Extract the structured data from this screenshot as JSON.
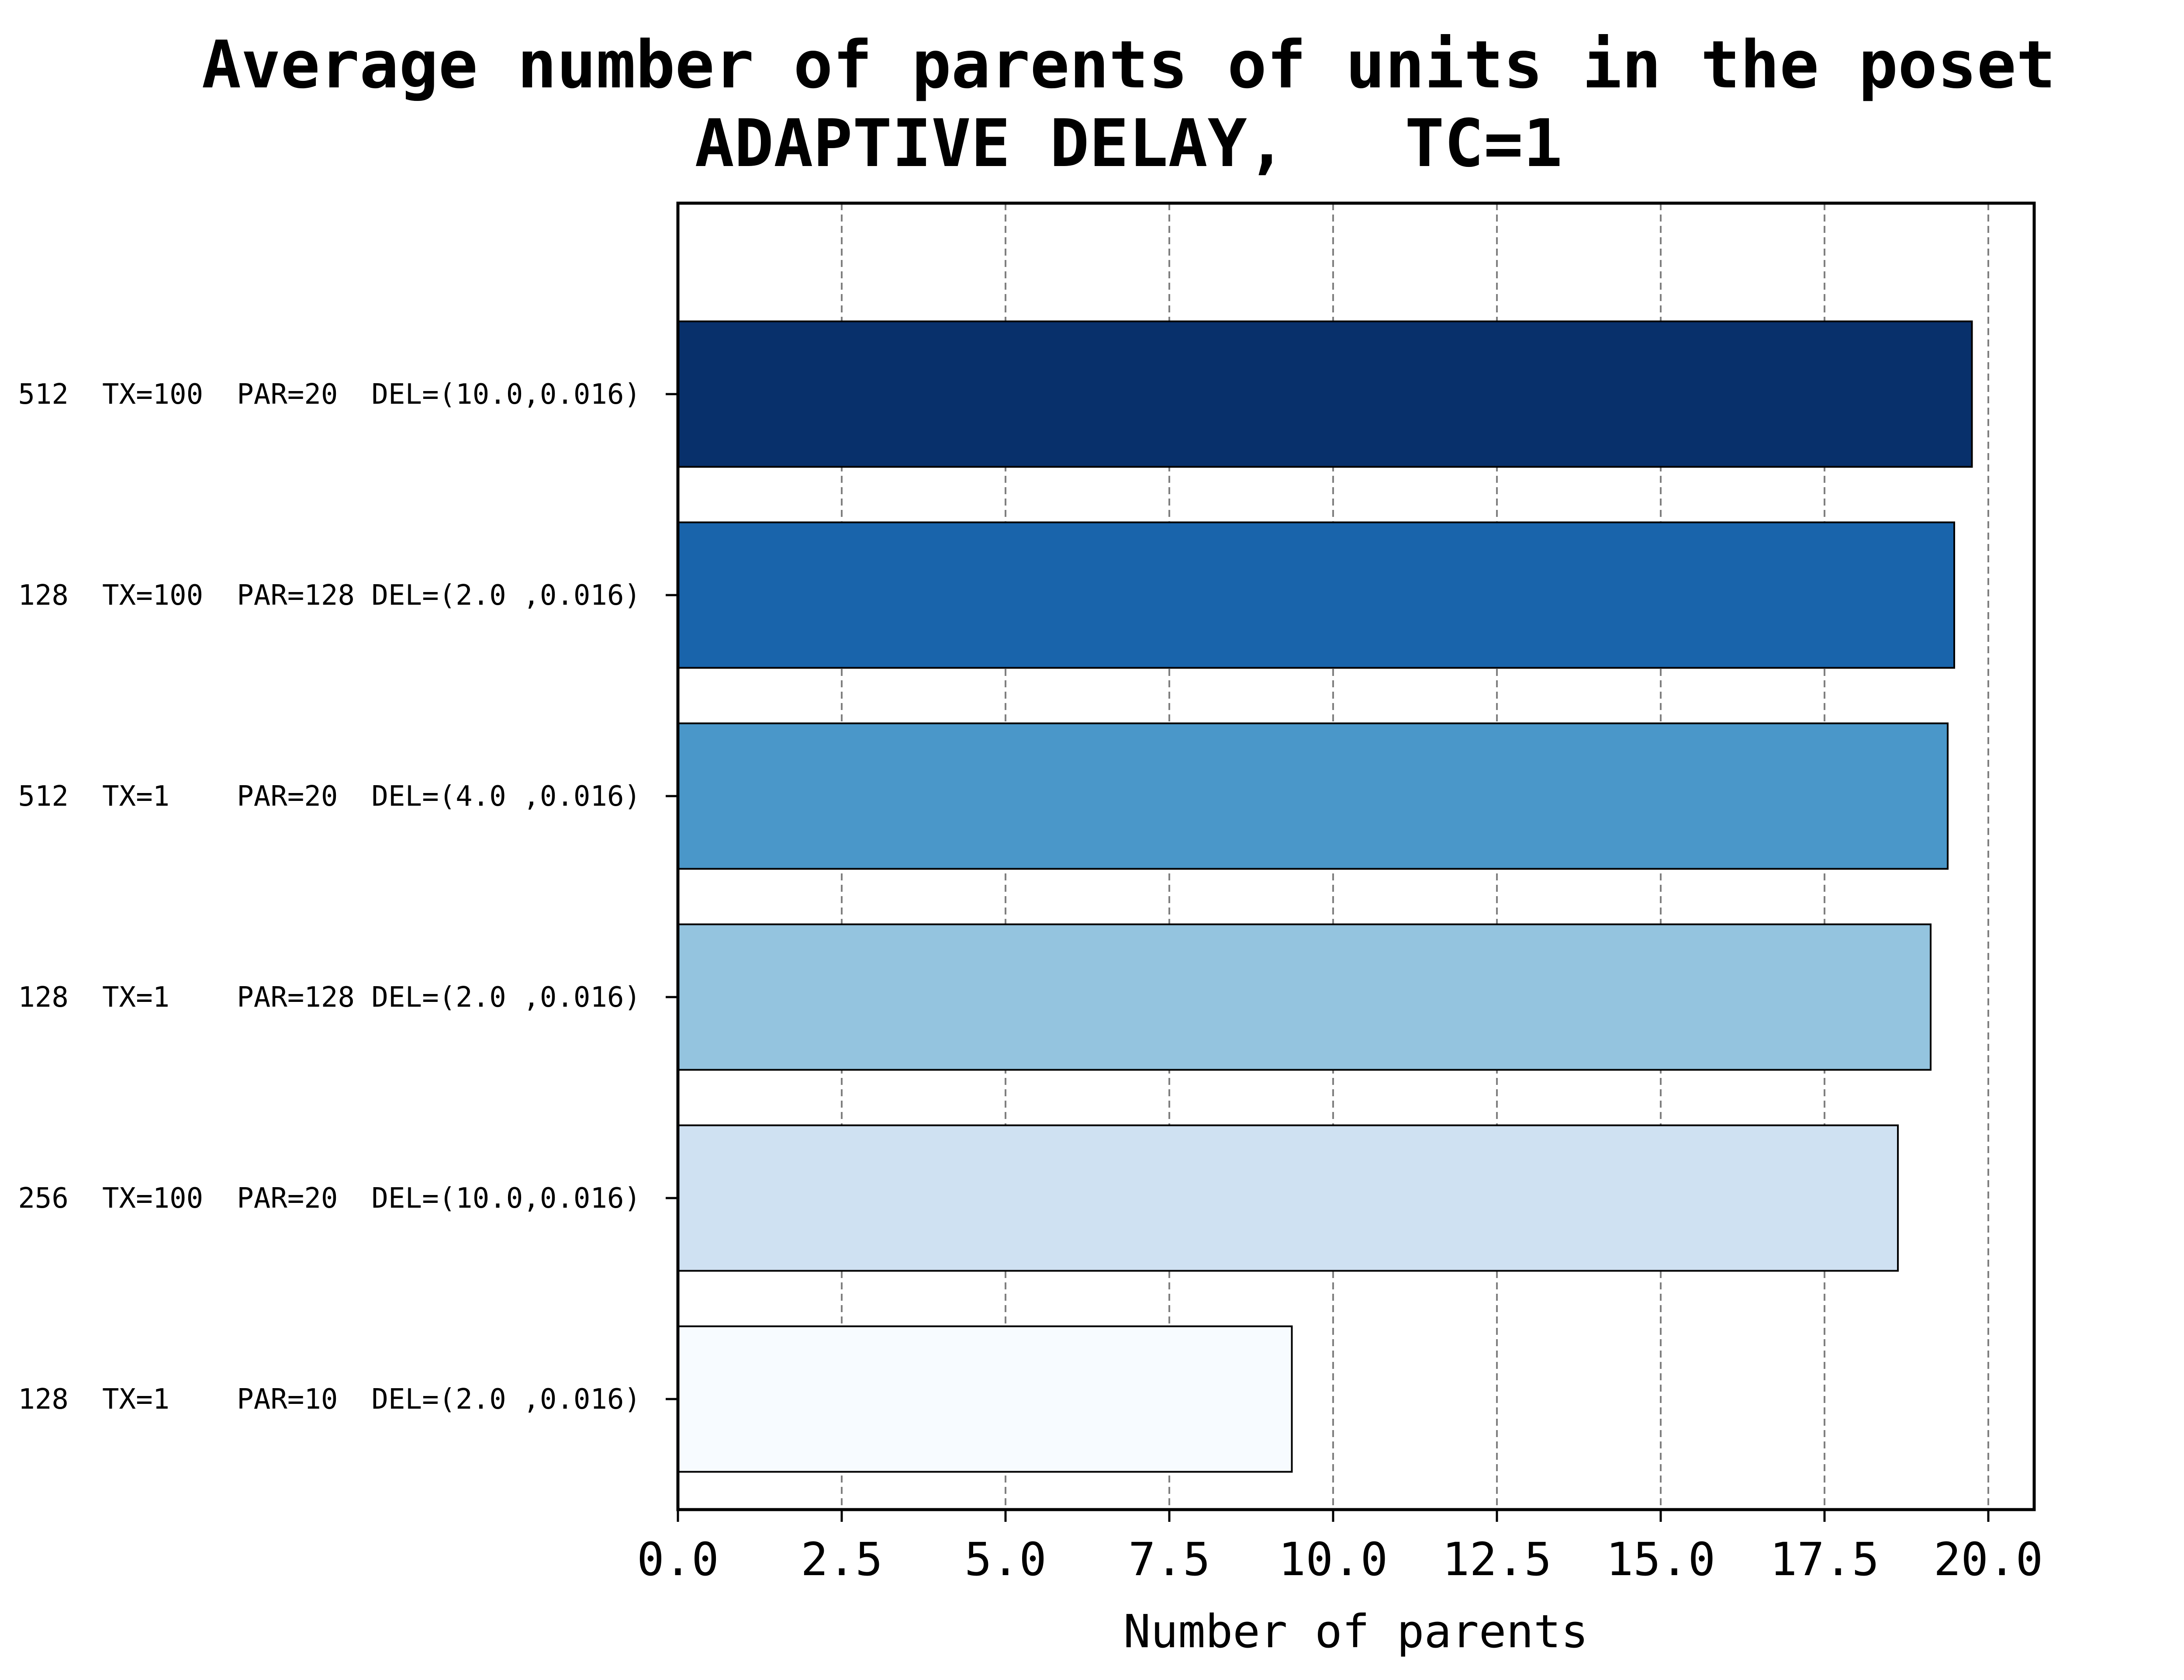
{
  "chart_data": {
    "type": "bar",
    "orientation": "horizontal",
    "title": "Average number of parents of units in the poset",
    "subtitle": "ADAPTIVE DELAY,   TC=1",
    "xlabel": "Number of parents",
    "ylabel": "",
    "xlim": [
      0,
      20.7
    ],
    "xticks": [
      "0.0",
      "2.5",
      "5.0",
      "7.5",
      "10.0",
      "12.5",
      "15.0",
      "17.5",
      "20.0"
    ],
    "grid": "vertical dashed",
    "categories": [
      "512  TX=100  PAR=20  DEL=(10.0,0.016)",
      "128  TX=100  PAR=128 DEL=(2.0 ,0.016)",
      "512  TX=1    PAR=20  DEL=(4.0 ,0.016)",
      "128  TX=1    PAR=128 DEL=(2.0 ,0.016)",
      "256  TX=100  PAR=20  DEL=(10.0,0.016)",
      "128  TX=1    PAR=10  DEL=(2.0 ,0.016)"
    ],
    "values": [
      19.75,
      19.48,
      19.38,
      19.12,
      18.62,
      9.37
    ],
    "colors": [
      "#08306b",
      "#1964ab",
      "#4a97c9",
      "#94c4df",
      "#cfe1f2",
      "#f7fbff"
    ]
  }
}
